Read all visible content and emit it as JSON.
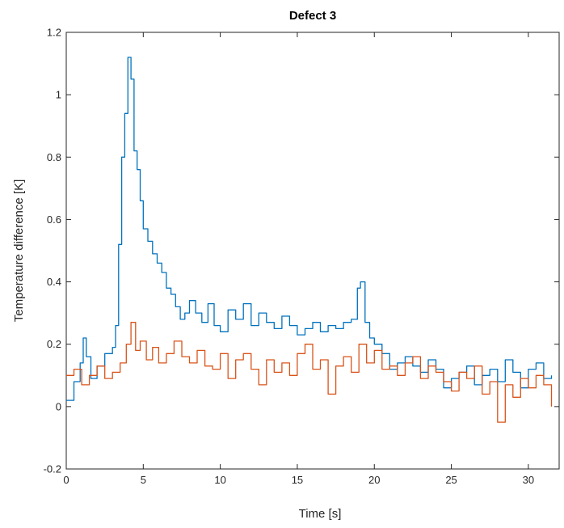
{
  "chart_data": {
    "type": "line",
    "title": "Defect 3",
    "xlabel": "Time [s]",
    "ylabel": "Temperature difference [K]",
    "xlim": [
      0,
      32
    ],
    "ylim": [
      -0.2,
      1.2
    ],
    "xticks": [
      "0",
      "5",
      "10",
      "15",
      "20",
      "25",
      "30"
    ],
    "yticks": [
      "-0.2",
      "0",
      "0.2",
      "0.4",
      "0.6",
      "0.8",
      "1",
      "1.2"
    ],
    "grid": false,
    "legend": "none",
    "series": [
      {
        "color": "#0072BD",
        "x": [
          0.0,
          0.5,
          0.9,
          1.1,
          1.3,
          1.6,
          2.0,
          2.5,
          3.0,
          3.2,
          3.4,
          3.6,
          3.8,
          4.0,
          4.2,
          4.4,
          4.6,
          4.8,
          5.0,
          5.3,
          5.6,
          5.9,
          6.2,
          6.5,
          6.8,
          7.1,
          7.4,
          7.7,
          8.0,
          8.4,
          8.8,
          9.2,
          9.6,
          10.0,
          10.5,
          11.0,
          11.5,
          12.0,
          12.5,
          13.0,
          13.5,
          14.0,
          14.5,
          15.0,
          15.5,
          16.0,
          16.5,
          17.0,
          17.5,
          18.0,
          18.5,
          18.9,
          19.1,
          19.4,
          19.7,
          20.0,
          20.5,
          21.0,
          21.5,
          22.0,
          22.5,
          23.0,
          23.5,
          24.0,
          24.5,
          25.0,
          25.5,
          26.0,
          26.5,
          27.0,
          27.5,
          28.0,
          28.5,
          29.0,
          29.5,
          30.0,
          30.5,
          31.0,
          31.5
        ],
        "y": [
          0.02,
          0.08,
          0.14,
          0.22,
          0.16,
          0.09,
          0.13,
          0.17,
          0.19,
          0.26,
          0.52,
          0.8,
          0.94,
          1.12,
          1.05,
          0.82,
          0.76,
          0.66,
          0.57,
          0.53,
          0.49,
          0.46,
          0.43,
          0.38,
          0.36,
          0.32,
          0.28,
          0.3,
          0.34,
          0.3,
          0.27,
          0.33,
          0.26,
          0.24,
          0.31,
          0.28,
          0.33,
          0.26,
          0.3,
          0.27,
          0.25,
          0.29,
          0.26,
          0.23,
          0.25,
          0.27,
          0.24,
          0.26,
          0.25,
          0.27,
          0.28,
          0.38,
          0.4,
          0.27,
          0.22,
          0.2,
          0.17,
          0.12,
          0.14,
          0.16,
          0.13,
          0.11,
          0.15,
          0.12,
          0.06,
          0.09,
          0.11,
          0.13,
          0.07,
          0.1,
          0.12,
          0.08,
          0.15,
          0.11,
          0.06,
          0.12,
          0.14,
          0.09,
          0.1
        ]
      },
      {
        "color": "#D95319",
        "x": [
          0.0,
          0.5,
          1.0,
          1.5,
          2.0,
          2.5,
          3.0,
          3.5,
          3.9,
          4.2,
          4.5,
          4.8,
          5.2,
          5.6,
          6.0,
          6.5,
          7.0,
          7.5,
          8.0,
          8.5,
          9.0,
          9.5,
          10.0,
          10.5,
          11.0,
          11.5,
          12.0,
          12.5,
          13.0,
          13.5,
          14.0,
          14.5,
          15.0,
          15.5,
          16.0,
          16.5,
          17.0,
          17.5,
          18.0,
          18.5,
          19.0,
          19.5,
          20.0,
          20.5,
          21.0,
          21.5,
          22.0,
          22.5,
          23.0,
          23.5,
          24.0,
          24.5,
          25.0,
          25.5,
          26.0,
          26.5,
          27.0,
          27.5,
          28.0,
          28.5,
          29.0,
          29.5,
          30.0,
          30.5,
          31.0,
          31.5
        ],
        "y": [
          0.1,
          0.12,
          0.07,
          0.1,
          0.13,
          0.09,
          0.11,
          0.14,
          0.2,
          0.27,
          0.18,
          0.21,
          0.15,
          0.19,
          0.14,
          0.17,
          0.21,
          0.16,
          0.14,
          0.18,
          0.13,
          0.12,
          0.17,
          0.09,
          0.15,
          0.17,
          0.12,
          0.07,
          0.15,
          0.11,
          0.14,
          0.1,
          0.17,
          0.2,
          0.12,
          0.15,
          0.04,
          0.13,
          0.16,
          0.11,
          0.2,
          0.14,
          0.18,
          0.12,
          0.13,
          0.1,
          0.14,
          0.16,
          0.09,
          0.13,
          0.11,
          0.08,
          0.05,
          0.11,
          0.09,
          0.13,
          0.04,
          0.08,
          -0.05,
          0.07,
          0.03,
          0.09,
          0.06,
          0.1,
          0.07,
          0.0
        ]
      }
    ]
  }
}
